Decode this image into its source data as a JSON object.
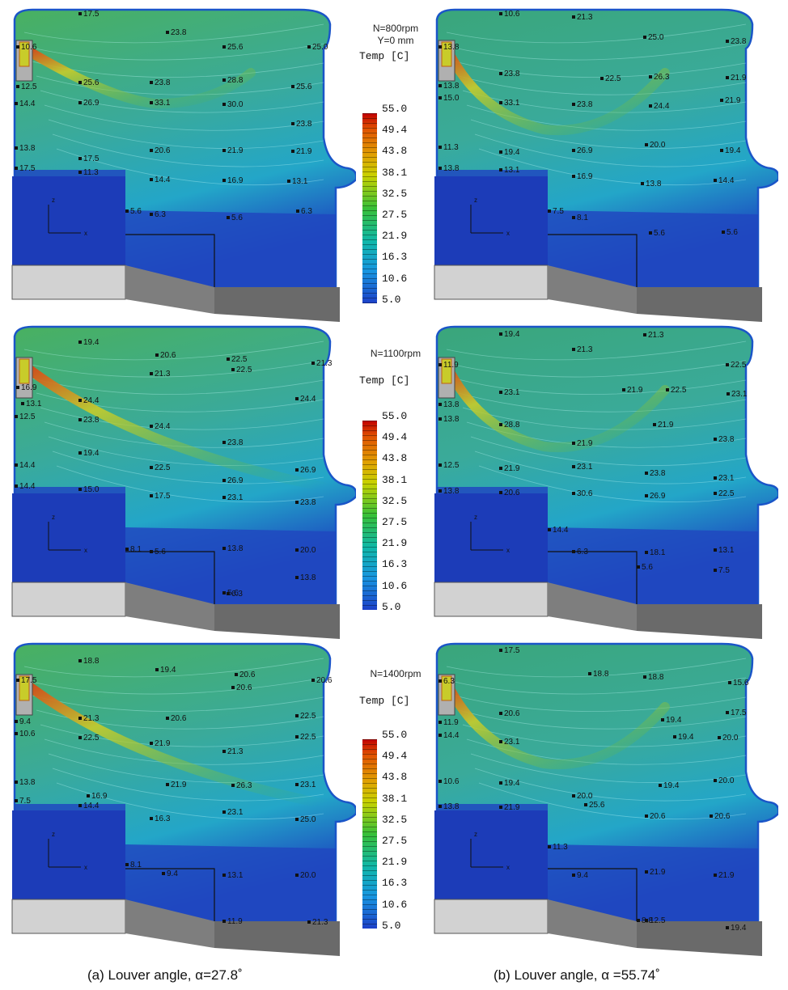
{
  "legends": [
    {
      "conditions": [
        "N=800rpm",
        "Y=0 mm"
      ],
      "title": "Temp [C]",
      "ticks": [
        "55.0",
        "49.4",
        "43.8",
        "38.1",
        "32.5",
        "27.5",
        "21.9",
        "16.3",
        "10.6",
        "5.0"
      ]
    },
    {
      "conditions": [
        "N=1100rpm"
      ],
      "title": "Temp [C]",
      "ticks": [
        "55.0",
        "49.4",
        "43.8",
        "38.1",
        "32.5",
        "27.5",
        "21.9",
        "16.3",
        "10.6",
        "5.0"
      ]
    },
    {
      "conditions": [
        "N=1400rpm"
      ],
      "title": "Temp [C]",
      "ticks": [
        "55.0",
        "49.4",
        "43.8",
        "38.1",
        "32.5",
        "27.5",
        "21.9",
        "16.3",
        "10.6",
        "5.0"
      ]
    }
  ],
  "axes_labels": {
    "z": "z",
    "x": "x"
  },
  "captions": {
    "a": "(a) Louver angle, α=27.8˚",
    "b": "(b) Louver angle, α =55.74˚"
  },
  "colors": {
    "cold": "#1c46c0",
    "cool": "#23a6c8",
    "mid": "#3db26a",
    "warm": "#c8cc2a",
    "hot": "#e03a10",
    "seat_light": "#d2d2d2",
    "seat_dark": "#7e7e7e"
  },
  "panels": [
    {
      "id": "a1",
      "probes": [
        {
          "t": "17.5"
        },
        {
          "t": "23.8"
        },
        {
          "t": "25.6"
        },
        {
          "t": "25.0"
        },
        {
          "t": "10.6"
        },
        {
          "t": "12.5"
        },
        {
          "t": "25.6"
        },
        {
          "t": "23.8"
        },
        {
          "t": "28.8"
        },
        {
          "t": "25.6"
        },
        {
          "t": "14.4"
        },
        {
          "t": "26.9"
        },
        {
          "t": "33.1"
        },
        {
          "t": "30.0"
        },
        {
          "t": "23.8"
        },
        {
          "t": "13.8"
        },
        {
          "t": "17.5"
        },
        {
          "t": "20.6"
        },
        {
          "t": "21.9"
        },
        {
          "t": "21.9"
        },
        {
          "t": "17.5"
        },
        {
          "t": "11.3"
        },
        {
          "t": "14.4"
        },
        {
          "t": "16.9"
        },
        {
          "t": "13.1"
        },
        {
          "t": "5.6"
        },
        {
          "t": "6.3"
        },
        {
          "t": "5.6"
        },
        {
          "t": "6.3"
        }
      ]
    },
    {
      "id": "b1",
      "probes": [
        {
          "t": "10.6"
        },
        {
          "t": "21.3"
        },
        {
          "t": "25.0"
        },
        {
          "t": "23.8"
        },
        {
          "t": "13.8"
        },
        {
          "t": "23.8"
        },
        {
          "t": "22.5"
        },
        {
          "t": "26.3"
        },
        {
          "t": "21.9"
        },
        {
          "t": "13.8"
        },
        {
          "t": "15.0"
        },
        {
          "t": "33.1"
        },
        {
          "t": "23.8"
        },
        {
          "t": "24.4"
        },
        {
          "t": "21.9"
        },
        {
          "t": "11.3"
        },
        {
          "t": "19.4"
        },
        {
          "t": "26.9"
        },
        {
          "t": "20.0"
        },
        {
          "t": "19.4"
        },
        {
          "t": "13.8"
        },
        {
          "t": "13.1"
        },
        {
          "t": "16.9"
        },
        {
          "t": "13.8"
        },
        {
          "t": "14.4"
        },
        {
          "t": "7.5"
        },
        {
          "t": "8.1"
        },
        {
          "t": "5.6"
        },
        {
          "t": "5.6"
        }
      ]
    },
    {
      "id": "a2",
      "probes": [
        {
          "t": "19.4"
        },
        {
          "t": "20.6"
        },
        {
          "t": "22.5"
        },
        {
          "t": "21.3"
        },
        {
          "t": "21.3"
        },
        {
          "t": "22.5"
        },
        {
          "t": "16.9"
        },
        {
          "t": "13.1"
        },
        {
          "t": "24.4"
        },
        {
          "t": "24.4"
        },
        {
          "t": "12.5"
        },
        {
          "t": "23.8"
        },
        {
          "t": "24.4"
        },
        {
          "t": "23.8"
        },
        {
          "t": "19.4"
        },
        {
          "t": "14.4"
        },
        {
          "t": "22.5"
        },
        {
          "t": "26.9"
        },
        {
          "t": "26.9"
        },
        {
          "t": "14.4"
        },
        {
          "t": "15.0"
        },
        {
          "t": "17.5"
        },
        {
          "t": "23.1"
        },
        {
          "t": "23.8"
        },
        {
          "t": "8.1"
        },
        {
          "t": "5.6"
        },
        {
          "t": "13.8"
        },
        {
          "t": "20.0"
        },
        {
          "t": "13.8"
        },
        {
          "t": "5.6"
        },
        {
          "t": "6.3"
        }
      ]
    },
    {
      "id": "b2",
      "probes": [
        {
          "t": "19.4"
        },
        {
          "t": "21.3"
        },
        {
          "t": "21.3"
        },
        {
          "t": "22.5"
        },
        {
          "t": "11.9"
        },
        {
          "t": "23.1"
        },
        {
          "t": "21.9"
        },
        {
          "t": "22.5"
        },
        {
          "t": "23.1"
        },
        {
          "t": "13.8"
        },
        {
          "t": "13.8"
        },
        {
          "t": "28.8"
        },
        {
          "t": "21.9"
        },
        {
          "t": "21.9"
        },
        {
          "t": "23.8"
        },
        {
          "t": "12.5"
        },
        {
          "t": "21.9"
        },
        {
          "t": "23.1"
        },
        {
          "t": "23.8"
        },
        {
          "t": "23.1"
        },
        {
          "t": "13.8"
        },
        {
          "t": "20.6"
        },
        {
          "t": "30.6"
        },
        {
          "t": "26.9"
        },
        {
          "t": "22.5"
        },
        {
          "t": "14.4"
        },
        {
          "t": "6.3"
        },
        {
          "t": "18.1"
        },
        {
          "t": "13.1"
        },
        {
          "t": "5.6"
        },
        {
          "t": "7.5"
        }
      ]
    },
    {
      "id": "a3",
      "probes": [
        {
          "t": "18.8"
        },
        {
          "t": "19.4"
        },
        {
          "t": "20.6"
        },
        {
          "t": "20.6"
        },
        {
          "t": "20.6"
        },
        {
          "t": "17.5"
        },
        {
          "t": "9.4"
        },
        {
          "t": "21.3"
        },
        {
          "t": "20.6"
        },
        {
          "t": "22.5"
        },
        {
          "t": "10.6"
        },
        {
          "t": "22.5"
        },
        {
          "t": "21.9"
        },
        {
          "t": "21.3"
        },
        {
          "t": "22.5"
        },
        {
          "t": "13.8"
        },
        {
          "t": "21.9"
        },
        {
          "t": "26.3"
        },
        {
          "t": "23.1"
        },
        {
          "t": "7.5"
        },
        {
          "t": "16.9"
        },
        {
          "t": "14.4"
        },
        {
          "t": "16.3"
        },
        {
          "t": "23.1"
        },
        {
          "t": "25.0"
        },
        {
          "t": "8.1"
        },
        {
          "t": "9.4"
        },
        {
          "t": "13.1"
        },
        {
          "t": "20.0"
        },
        {
          "t": "11.9"
        },
        {
          "t": "21.3"
        }
      ]
    },
    {
      "id": "b3",
      "probes": [
        {
          "t": "17.5"
        },
        {
          "t": "18.8"
        },
        {
          "t": "18.8"
        },
        {
          "t": "15.6"
        },
        {
          "t": "6.3"
        },
        {
          "t": "20.6"
        },
        {
          "t": "17.5"
        },
        {
          "t": "11.9"
        },
        {
          "t": "19.4"
        },
        {
          "t": "14.4"
        },
        {
          "t": "23.1"
        },
        {
          "t": "19.4"
        },
        {
          "t": "20.0"
        },
        {
          "t": "10.6"
        },
        {
          "t": "19.4"
        },
        {
          "t": "19.4"
        },
        {
          "t": "20.0"
        },
        {
          "t": "13.8"
        },
        {
          "t": "21.9"
        },
        {
          "t": "20.0"
        },
        {
          "t": "25.6"
        },
        {
          "t": "20.6"
        },
        {
          "t": "20.6"
        },
        {
          "t": "11.3"
        },
        {
          "t": "9.4"
        },
        {
          "t": "21.9"
        },
        {
          "t": "21.9"
        },
        {
          "t": "8.8"
        },
        {
          "t": "12.5"
        },
        {
          "t": "19.4"
        }
      ]
    }
  ]
}
